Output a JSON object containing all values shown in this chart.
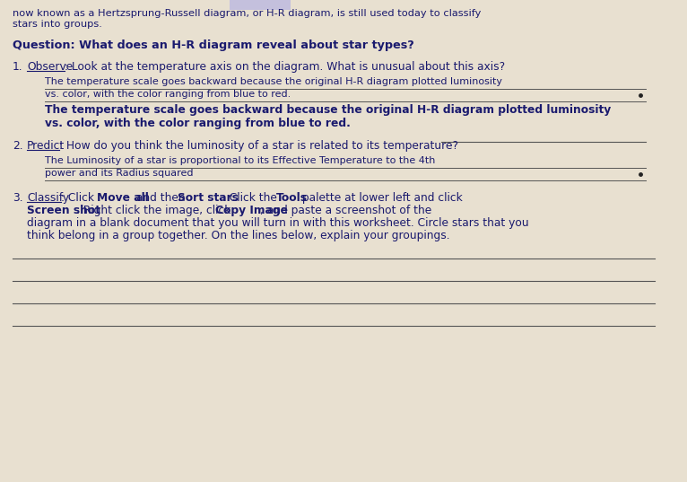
{
  "bg_color": "#e8e0d0",
  "text_color": "#1a1a6e",
  "line_color": "#555555",
  "dot_color": "#222222",
  "highlight_color": "#8888ff",
  "header_line1": "now known as a Hertzsprung-Russell diagram, or H-R diagram, is still used today to classify",
  "header_line2": "stars into groups.",
  "question": "Question: What does an H-R diagram reveal about star types?",
  "obs_label": "Observe",
  "obs_text": ": Look at the temperature axis on the diagram. What is unusual about this axis?",
  "ans1a": "The temperature scale goes backward because the original H-R diagram plotted luminosity",
  "ans1b": "vs. color, with the color ranging from blue to red.",
  "ans1c": "The temperature scale goes backward because the original H-R diagram plotted luminosity",
  "ans1d": "vs. color, with the color ranging from blue to red.",
  "pred_label": "Predict",
  "pred_text": ": How do you think the luminosity of a star is related to its temperature?",
  "ans2a": "The Luminosity of a star is proportional to its Effective Temperature to the 4th",
  "ans2b": "power and its Radius squared",
  "class_label": "Classify",
  "class_p1": ": Click ",
  "class_bold1": "Move all",
  "class_p2": " and then ",
  "class_bold2": "Sort stars",
  "class_p3": ". Click the ",
  "class_bold3": "Tools",
  "class_p4": " palette at lower left and click",
  "class_bold4": "Screen shot",
  "class_p5": ". Right click the image, click ",
  "class_bold5": "Copy Image",
  "class_p6": ", and paste a screenshot of the",
  "class_line3": "diagram in a blank document that you will turn in with this worksheet. Circle stars that you",
  "class_line4": "think belong in a group together. On the lines below, explain your groupings."
}
